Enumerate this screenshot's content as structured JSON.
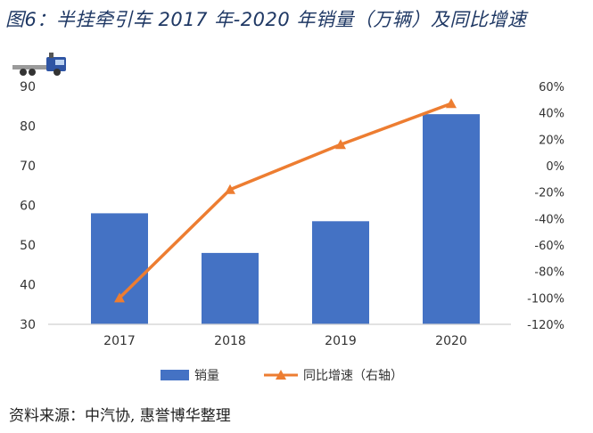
{
  "header": {
    "title": "图6：半挂牵引车 2017 年-2020 年销量（万辆）及同比增速"
  },
  "footer": {
    "source": "资料来源：中汽协, 惠誉博华整理"
  },
  "chart_data": {
    "type": "bar",
    "categories": [
      "2017",
      "2018",
      "2019",
      "2020"
    ],
    "series": [
      {
        "name": "销量",
        "type": "bar",
        "axis": "left",
        "values": [
          58,
          48,
          56,
          83
        ],
        "color": "#4472c4"
      },
      {
        "name": "同比增速（右轴）",
        "type": "line",
        "axis": "right",
        "values": [
          -100,
          -18,
          16,
          47
        ],
        "color": "#ed7d31"
      }
    ],
    "y_left": {
      "min": 30,
      "max": 90,
      "ticks": [
        30,
        40,
        50,
        60,
        70,
        80,
        90
      ],
      "tick_labels": [
        "30",
        "40",
        "50",
        "60",
        "70",
        "80",
        "90"
      ]
    },
    "y_right": {
      "min": -120,
      "max": 60,
      "ticks": [
        -120,
        -100,
        -80,
        -60,
        -40,
        -20,
        0,
        20,
        40,
        60
      ],
      "tick_labels": [
        "-120%",
        "-100%",
        "-80%",
        "-60%",
        "-40%",
        "-20%",
        "0%",
        "20%",
        "40%",
        "60%"
      ]
    },
    "grid": false,
    "legend": "bottom",
    "icon": "semi-truck-icon"
  }
}
